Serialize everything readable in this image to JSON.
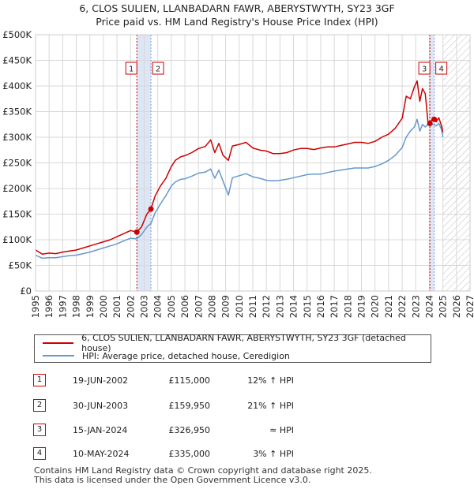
{
  "title_line1": "6, CLOS SULIEN, LLANBADARN FAWR, ABERYSTWYTH, SY23 3GF",
  "title_line2": "Price paid vs. HM Land Registry's House Price Index (HPI)",
  "legend": {
    "property_label": "6, CLOS SULIEN, LLANBADARN FAWR, ABERYSTWYTH, SY23 3GF (detached house)",
    "hpi_label": "HPI: Average price, detached house, Ceredigion"
  },
  "colors": {
    "property": "#cc0000",
    "hpi": "#6699cc",
    "marker_line": "#cc0000",
    "shade": "#dde6f5",
    "grid": "#d8d8d8"
  },
  "transactions": [
    {
      "num": "1",
      "date": "19-JUN-2002",
      "price": "£115,000",
      "delta": "12% ↑ HPI"
    },
    {
      "num": "2",
      "date": "30-JUN-2003",
      "price": "£159,950",
      "delta": "21% ↑ HPI"
    },
    {
      "num": "3",
      "date": "15-JAN-2024",
      "price": "£326,950",
      "delta": "≈ HPI"
    },
    {
      "num": "4",
      "date": "10-MAY-2024",
      "price": "£335,000",
      "delta": "3% ↑ HPI"
    }
  ],
  "footer_line1": "Contains HM Land Registry data © Crown copyright and database right 2025.",
  "footer_line2": "This data is licensed under the Open Government Licence v3.0.",
  "chart_data": {
    "type": "line",
    "title": "Price paid vs. HM Land Registry's House Price Index (HPI)",
    "xlim": [
      1995,
      2027
    ],
    "ylim": [
      0,
      500000
    ],
    "x_ticks": [
      "1995",
      "1996",
      "1997",
      "1998",
      "1999",
      "2000",
      "2001",
      "2002",
      "2003",
      "2004",
      "2005",
      "2006",
      "2007",
      "2008",
      "2009",
      "2010",
      "2011",
      "2012",
      "2013",
      "2014",
      "2015",
      "2016",
      "2017",
      "2018",
      "2019",
      "2020",
      "2021",
      "2022",
      "2023",
      "2024",
      "2025",
      "2026",
      "2027"
    ],
    "y_ticks": [
      {
        "value": 0,
        "label": "£0"
      },
      {
        "value": 50000,
        "label": "£50K"
      },
      {
        "value": 100000,
        "label": "£100K"
      },
      {
        "value": 150000,
        "label": "£150K"
      },
      {
        "value": 200000,
        "label": "£200K"
      },
      {
        "value": 250000,
        "label": "£250K"
      },
      {
        "value": 300000,
        "label": "£300K"
      },
      {
        "value": 350000,
        "label": "£350K"
      },
      {
        "value": 400000,
        "label": "£400K"
      },
      {
        "value": 450000,
        "label": "£450K"
      },
      {
        "value": 500000,
        "label": "£500K"
      }
    ],
    "hatch_from_year": 2025.0,
    "series": [
      {
        "name": "6, CLOS SULIEN, LLANBADARN FAWR, ABERYSTWYTH, SY23 3GF (detached house)",
        "color": "#cc0000",
        "x": [
          1995.0,
          1995.5,
          1996.0,
          1996.5,
          1997.0,
          1997.5,
          1998.0,
          1998.5,
          1999.0,
          1999.5,
          2000.0,
          2000.5,
          2001.0,
          2001.5,
          2002.0,
          2002.46,
          2002.8,
          2003.2,
          2003.5,
          2003.8,
          2004.2,
          2004.6,
          2005.0,
          2005.3,
          2005.7,
          2006.0,
          2006.5,
          2007.0,
          2007.5,
          2007.9,
          2008.2,
          2008.5,
          2008.8,
          2009.2,
          2009.5,
          2010.0,
          2010.5,
          2011.0,
          2011.5,
          2012.0,
          2012.5,
          2013.0,
          2013.5,
          2014.0,
          2014.5,
          2015.0,
          2015.5,
          2016.0,
          2016.5,
          2017.0,
          2017.5,
          2018.0,
          2018.5,
          2019.0,
          2019.5,
          2020.0,
          2020.5,
          2021.0,
          2021.5,
          2022.0,
          2022.3,
          2022.6,
          2022.9,
          2023.1,
          2023.3,
          2023.5,
          2023.7,
          2023.9,
          2024.04,
          2024.2,
          2024.36,
          2024.5,
          2024.7,
          2024.9,
          2025.0
        ],
        "values": [
          80000,
          72000,
          74000,
          73000,
          76000,
          78000,
          80000,
          84000,
          88000,
          92000,
          96000,
          100000,
          106000,
          112000,
          118000,
          115000,
          125000,
          150000,
          159950,
          185000,
          205000,
          220000,
          243000,
          255000,
          262000,
          264000,
          270000,
          278000,
          282000,
          295000,
          270000,
          288000,
          265000,
          255000,
          283000,
          286000,
          290000,
          279000,
          275000,
          273000,
          268000,
          268000,
          270000,
          275000,
          278000,
          278000,
          276000,
          279000,
          281000,
          281000,
          284000,
          287000,
          290000,
          290000,
          288000,
          292000,
          300000,
          306000,
          318000,
          337000,
          380000,
          375000,
          398000,
          410000,
          370000,
          395000,
          385000,
          330000,
          326950,
          335000,
          335000,
          330000,
          338000,
          322000,
          310000
        ]
      },
      {
        "name": "HPI: Average price, detached house, Ceredigion",
        "color": "#6699cc",
        "x": [
          1995.0,
          1995.5,
          1996.0,
          1996.5,
          1997.0,
          1997.5,
          1998.0,
          1998.5,
          1999.0,
          1999.5,
          2000.0,
          2000.5,
          2001.0,
          2001.5,
          2002.0,
          2002.46,
          2002.8,
          2003.2,
          2003.5,
          2003.8,
          2004.2,
          2004.6,
          2005.0,
          2005.3,
          2005.7,
          2006.0,
          2006.5,
          2007.0,
          2007.5,
          2007.9,
          2008.2,
          2008.5,
          2008.8,
          2009.2,
          2009.5,
          2010.0,
          2010.5,
          2011.0,
          2011.5,
          2012.0,
          2012.5,
          2013.0,
          2013.5,
          2014.0,
          2014.5,
          2015.0,
          2015.5,
          2016.0,
          2016.5,
          2017.0,
          2017.5,
          2018.0,
          2018.5,
          2019.0,
          2019.5,
          2020.0,
          2020.5,
          2021.0,
          2021.5,
          2022.0,
          2022.3,
          2022.6,
          2022.9,
          2023.1,
          2023.3,
          2023.5,
          2023.7,
          2023.9,
          2024.04,
          2024.2,
          2024.36,
          2024.5,
          2024.7,
          2024.9,
          2025.0
        ],
        "values": [
          70000,
          64000,
          65000,
          65000,
          67000,
          69000,
          70000,
          73000,
          76000,
          80000,
          84000,
          88000,
          92000,
          98000,
          103000,
          102000,
          110000,
          125000,
          132000,
          152000,
          170000,
          186000,
          205000,
          213000,
          218000,
          219000,
          224000,
          230000,
          232000,
          238000,
          220000,
          236000,
          215000,
          187000,
          221000,
          225000,
          229000,
          223000,
          220000,
          216000,
          215000,
          216000,
          218000,
          221000,
          224000,
          227000,
          228000,
          228000,
          231000,
          234000,
          236000,
          238000,
          240000,
          240000,
          240000,
          243000,
          248000,
          255000,
          265000,
          280000,
          300000,
          312000,
          320000,
          335000,
          312000,
          325000,
          320000,
          325000,
          327000,
          325000,
          325000,
          322000,
          327000,
          315000,
          300000
        ]
      }
    ],
    "markers": [
      {
        "label": "1",
        "x": 2002.46,
        "value": 115000
      },
      {
        "label": "2",
        "x": 2003.5,
        "value": 159950
      },
      {
        "label": "3",
        "x": 2024.04,
        "value": 326950
      },
      {
        "label": "4",
        "x": 2024.36,
        "value": 335000
      }
    ]
  }
}
